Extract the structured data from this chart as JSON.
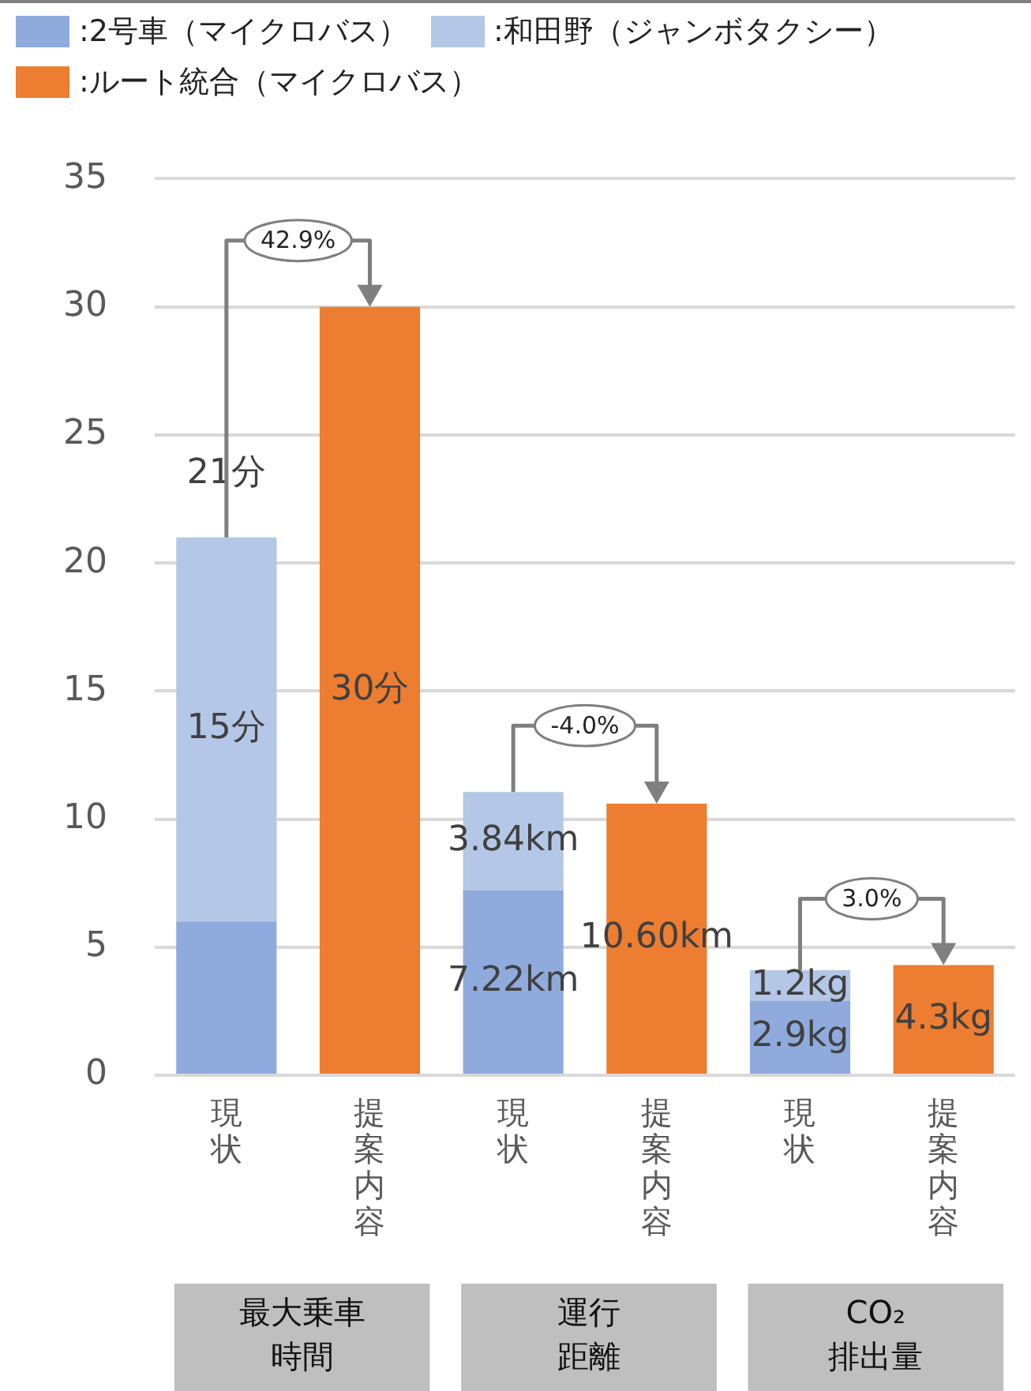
{
  "chart_data": {
    "type": "bar",
    "stacked": true,
    "categories": [
      "現状",
      "提案内容",
      "現状",
      "提案内容",
      "現状",
      "提案内容"
    ],
    "series": [
      {
        "name": ":2号車（マイクロバス）",
        "color": "#8faadc",
        "values": [
          6,
          null,
          7.22,
          null,
          2.9,
          null
        ],
        "value_labels": [
          null,
          null,
          "7.22km",
          null,
          "2.9kg",
          null
        ]
      },
      {
        "name": ":和田野（ジャンボタクシー）",
        "color": "#b4c7e7",
        "values": [
          15,
          null,
          3.84,
          null,
          1.2,
          null
        ],
        "value_labels": [
          "15分",
          null,
          "3.84km",
          null,
          "1.2kg",
          null
        ]
      },
      {
        "name": ":ルート統合（マイクロバス）",
        "color": "#ed7d31",
        "values": [
          null,
          30,
          null,
          10.6,
          null,
          4.3
        ],
        "value_labels": [
          null,
          "30分",
          null,
          "10.60km",
          null,
          "4.3kg"
        ]
      }
    ],
    "totals": [
      "21分",
      null,
      null,
      null,
      null,
      null
    ],
    "annotations": [
      "42.9%",
      "最大乗車",
      "時間",
      "-4.0%",
      "運行",
      "距離",
      "3.0%",
      "CO₂",
      "排出量"
    ],
    "ylim": [
      0,
      35
    ],
    "yticks": [
      0,
      5,
      10,
      15,
      20,
      25,
      30,
      35
    ],
    "grid": "y",
    "legend": "top left"
  }
}
